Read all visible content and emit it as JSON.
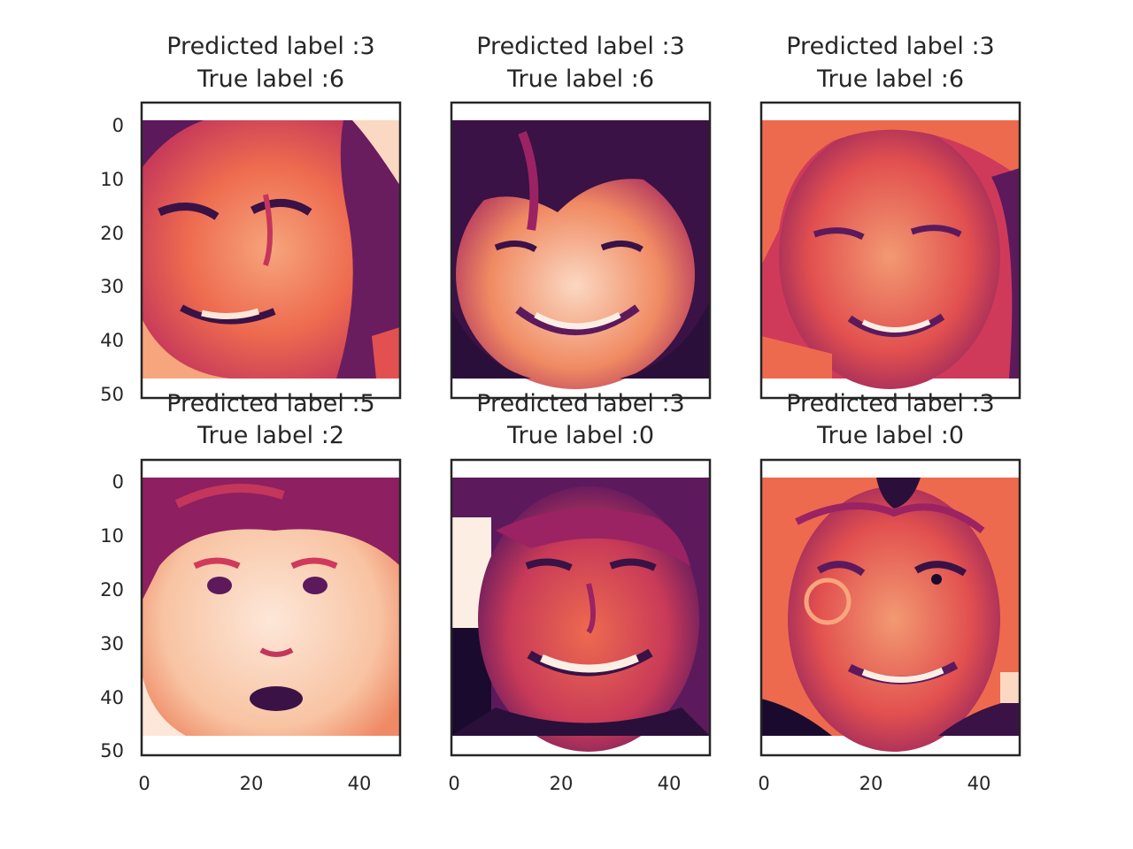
{
  "panels": [
    {
      "title_line1": "Predicted label :3",
      "title_line2": "True label :6",
      "face": "young woman squinting with a crooked smile, dark hair on the right"
    },
    {
      "title_line1": "Predicted label :3",
      "title_line2": "True label :6",
      "face": "woman with dark bangs, broad smile"
    },
    {
      "title_line1": "Predicted label :3",
      "title_line2": "True label :6",
      "face": "blonde woman smiling"
    },
    {
      "title_line1": "Predicted label :5",
      "title_line2": "True label :2",
      "face": "young boy with wide eyes and open mouth"
    },
    {
      "title_line1": "Predicted label :3",
      "title_line2": "True label :0",
      "face": "man grimacing with teeth showing"
    },
    {
      "title_line1": "Predicted label :3",
      "title_line2": "True label :0",
      "face": "man with glasses, squinting grin"
    }
  ],
  "y_ticks": [
    "0",
    "10",
    "20",
    "30",
    "40",
    "50"
  ],
  "x_ticks": [
    "0",
    "20",
    "40"
  ],
  "colormap": [
    "#1a0b2e",
    "#5c1a5c",
    "#9b2363",
    "#d03a5a",
    "#ee6a4f",
    "#f6a57c",
    "#fbd8c2",
    "#fdeee4"
  ]
}
